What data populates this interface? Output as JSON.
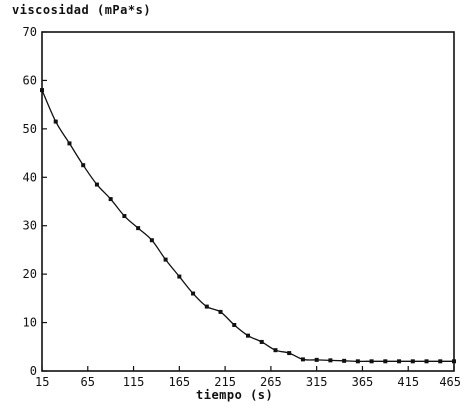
{
  "chart_data": {
    "type": "line",
    "title": "",
    "xlabel": "tiempo (s)",
    "ylabel": "viscosidad (mPa*s)",
    "xlim": [
      15,
      465
    ],
    "ylim": [
      0,
      70
    ],
    "x_ticks": [
      "15",
      "65",
      "115",
      "165",
      "215",
      "265",
      "315",
      "365",
      "415",
      "465"
    ],
    "y_ticks": [
      "0",
      "10",
      "20",
      "30",
      "40",
      "50",
      "60",
      "70"
    ],
    "grid": false,
    "series": [
      {
        "x": [
          15,
          30,
          45,
          60,
          75,
          90,
          105,
          120,
          135,
          150,
          165,
          180,
          195,
          210,
          225,
          240,
          255,
          270,
          285,
          300,
          315,
          330,
          345,
          360,
          375,
          390,
          405,
          420,
          435,
          450,
          465
        ],
        "values": [
          58,
          51.5,
          47,
          42.5,
          38.5,
          35.5,
          32,
          29.5,
          27,
          23,
          19.5,
          16,
          13.3,
          12.2,
          9.5,
          7.3,
          6,
          4.3,
          3.7,
          2.4,
          2.3,
          2.2,
          2.1,
          2.0,
          2.0,
          2.0,
          2.0,
          2.0,
          2.0,
          2.0,
          2.0
        ],
        "color": "#111111"
      }
    ]
  }
}
